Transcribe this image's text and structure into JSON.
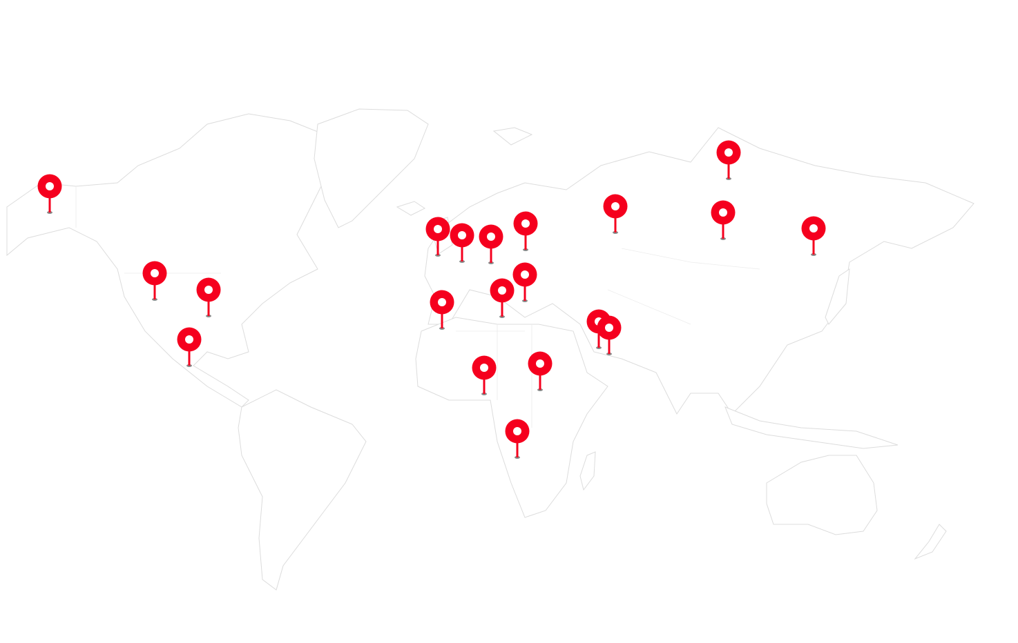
{
  "map": {
    "type": "world-map",
    "land_stroke_color": "#dcdcdc",
    "background_color": "#ffffff",
    "marker": {
      "icon": "map-pin-icon",
      "color": "#f5001e",
      "inner_color": "#ffffff",
      "shadow_color": "#8a8a8a"
    },
    "marker_count": 20
  }
}
